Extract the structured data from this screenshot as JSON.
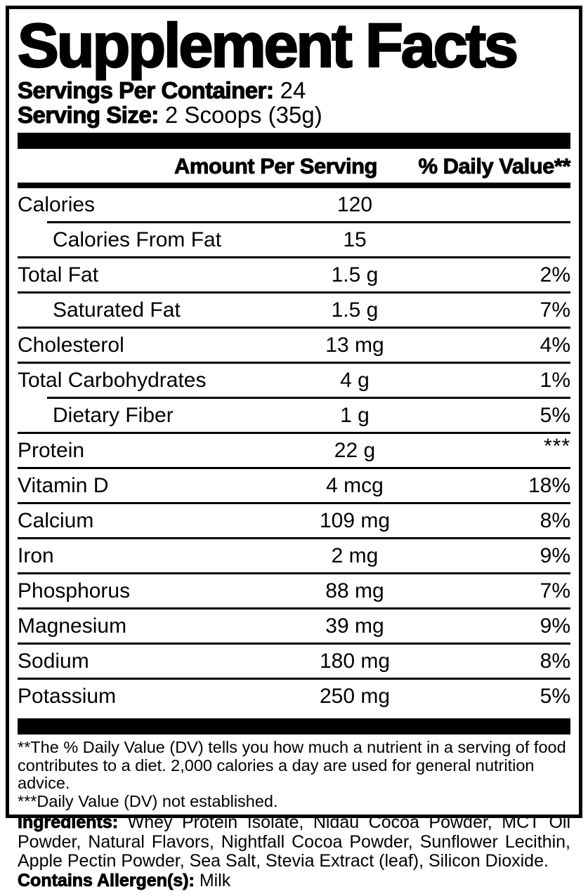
{
  "colors": {
    "ink": "#000000",
    "paper": "#ffffff"
  },
  "panel": {
    "title": "Supplement Facts",
    "servings_per_container": {
      "label": "Servings Per Container:",
      "value": "24"
    },
    "serving_size": {
      "label": "Serving Size:",
      "value": "2 Scoops (35g)"
    },
    "columns": {
      "amount": "Amount Per Serving",
      "daily_value": "% Daily Value**"
    },
    "rows": [
      {
        "name": "Calories",
        "amount": "120",
        "dv": "",
        "indent": false,
        "sep": "none",
        "dv_super": false
      },
      {
        "name": "Calories From Fat",
        "amount": "15",
        "dv": "",
        "indent": true,
        "sep": "indent",
        "dv_super": false
      },
      {
        "name": "Total Fat",
        "amount": "1.5 g",
        "dv": "2%",
        "indent": false,
        "sep": "full",
        "dv_super": false
      },
      {
        "name": "Saturated Fat",
        "amount": "1.5 g",
        "dv": "7%",
        "indent": true,
        "sep": "full",
        "dv_super": false
      },
      {
        "name": "Cholesterol",
        "amount": "13 mg",
        "dv": "4%",
        "indent": false,
        "sep": "full",
        "dv_super": false
      },
      {
        "name": "Total Carbohydrates",
        "amount": "4 g",
        "dv": "1%",
        "indent": false,
        "sep": "full",
        "dv_super": false
      },
      {
        "name": "Dietary Fiber",
        "amount": "1 g",
        "dv": "5%",
        "indent": true,
        "sep": "indent",
        "dv_super": false
      },
      {
        "name": "Protein",
        "amount": "22 g",
        "dv": "***",
        "indent": false,
        "sep": "full",
        "dv_super": true
      },
      {
        "name": "Vitamin D",
        "amount": "4 mcg",
        "dv": "18%",
        "indent": false,
        "sep": "full",
        "dv_super": false
      },
      {
        "name": "Calcium",
        "amount": "109 mg",
        "dv": "8%",
        "indent": false,
        "sep": "full",
        "dv_super": false
      },
      {
        "name": "Iron",
        "amount": "2 mg",
        "dv": "9%",
        "indent": false,
        "sep": "full",
        "dv_super": false
      },
      {
        "name": "Phosphorus",
        "amount": "88 mg",
        "dv": "7%",
        "indent": false,
        "sep": "full",
        "dv_super": false
      },
      {
        "name": "Magnesium",
        "amount": "39 mg",
        "dv": "9%",
        "indent": false,
        "sep": "full",
        "dv_super": false
      },
      {
        "name": "Sodium",
        "amount": "180 mg",
        "dv": "8%",
        "indent": false,
        "sep": "full",
        "dv_super": false
      },
      {
        "name": "Potassium",
        "amount": "250 mg",
        "dv": "5%",
        "indent": false,
        "sep": "full",
        "dv_super": false
      }
    ],
    "footnotes": [
      "**The % Daily Value (DV) tells you how much a nutrient in a serving of food contributes to a diet. 2,000 calories a day are used for general nutrition advice.",
      "***Daily Value (DV) not established."
    ]
  },
  "ingredients": {
    "label": "Ingredients:",
    "text": "Whey Protein Isolate, Nidau Cocoa Powder, MCT Oil Powder, Natural Flavors, Nightfall Cocoa Powder, Sunflower Lecithin, Apple Pectin Powder, Sea Salt, Stevia Extract (leaf), Silicon Dioxide."
  },
  "allergen": {
    "label": "Contains Allergen(s):",
    "value": "Milk"
  }
}
